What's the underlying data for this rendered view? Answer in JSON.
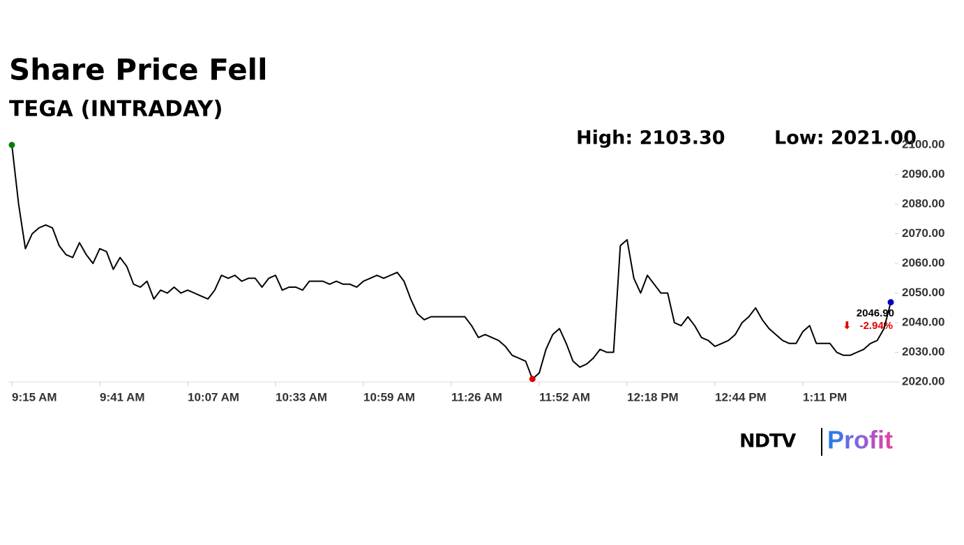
{
  "chart_data": {
    "type": "line",
    "title": "Share Price Fell",
    "subtitle": "TEGA (INTRADAY)",
    "high_text": "High: 2103.30",
    "low_text": "Low: 2021.00",
    "last_label": "2046.90",
    "change_label": "-2.94%",
    "categories": [
      "9:15 AM",
      null,
      null,
      null,
      null,
      null,
      null,
      null,
      null,
      null,
      null,
      null,
      null,
      "9:41 AM",
      null,
      null,
      null,
      null,
      null,
      null,
      null,
      null,
      null,
      null,
      null,
      null,
      "10:07 AM",
      null,
      null,
      null,
      null,
      null,
      null,
      null,
      null,
      null,
      null,
      null,
      null,
      "10:33 AM",
      null,
      null,
      null,
      null,
      null,
      null,
      null,
      null,
      null,
      null,
      null,
      null,
      "10:59 AM",
      null,
      null,
      null,
      null,
      null,
      null,
      null,
      null,
      null,
      null,
      null,
      null,
      "11:26 AM",
      null,
      null,
      null,
      null,
      null,
      null,
      null,
      null,
      null,
      null,
      null,
      null,
      "11:52 AM",
      null,
      null,
      null,
      null,
      null,
      null,
      null,
      null,
      null,
      null,
      null,
      null,
      "12:18 PM",
      null,
      null,
      null,
      null,
      null,
      null,
      null,
      null,
      null,
      null,
      null,
      null,
      "12:44 PM",
      null,
      null,
      null,
      null,
      null,
      null,
      null,
      null,
      null,
      null,
      null,
      null,
      "1:11 PM",
      null,
      null,
      null,
      null,
      null,
      null,
      null,
      null,
      null,
      null,
      null,
      null,
      null
    ],
    "series": [
      {
        "name": "TEGA",
        "color": "#000000",
        "values": [
          2100,
          2080,
          2065,
          2070,
          2072,
          2073,
          2072,
          2066,
          2063,
          2062,
          2067,
          2063,
          2060,
          2065,
          2064,
          2058,
          2062,
          2059,
          2053,
          2052,
          2054,
          2048,
          2051,
          2050,
          2052,
          2050,
          2051,
          2050,
          2049,
          2048,
          2051,
          2056,
          2055,
          2056,
          2054,
          2055,
          2055,
          2052,
          2055,
          2056,
          2051,
          2052,
          2052,
          2051,
          2054,
          2054,
          2054,
          2053,
          2054,
          2053,
          2053,
          2052,
          2054,
          2055,
          2056,
          2055,
          2056,
          2057,
          2054,
          2048,
          2043,
          2041,
          2042,
          2042,
          2042,
          2042,
          2042,
          2042,
          2039,
          2035,
          2036,
          2035,
          2034,
          2032,
          2029,
          2028,
          2027,
          2021,
          2023,
          2031,
          2036,
          2038,
          2033,
          2027,
          2025,
          2026,
          2028,
          2031,
          2030,
          2030,
          2066,
          2068,
          2055,
          2050,
          2056,
          2053,
          2050,
          2050,
          2040,
          2039,
          2042,
          2039,
          2035,
          2034,
          2032,
          2033,
          2034,
          2036,
          2040,
          2042,
          2045,
          2041,
          2038,
          2036,
          2034,
          2033,
          2033,
          2037,
          2039,
          2033,
          2033,
          2033,
          2030,
          2029,
          2029,
          2030,
          2031,
          2033,
          2034,
          2038,
          2046.9
        ]
      }
    ],
    "marker_colors": {
      "start": "#008000",
      "low": "#e00000",
      "end": "#0000c0"
    },
    "ylim": [
      2020,
      2100
    ],
    "yticks": [
      {
        "value": 2020,
        "label": "2020.00"
      },
      {
        "value": 2030,
        "label": "2030.00"
      },
      {
        "value": 2040,
        "label": "2040.00"
      },
      {
        "value": 2050,
        "label": "2050.00"
      },
      {
        "value": 2060,
        "label": "2060.00"
      },
      {
        "value": 2070,
        "label": "2070.00"
      },
      {
        "value": 2080,
        "label": "2080.00"
      },
      {
        "value": 2090,
        "label": "2090.00"
      },
      {
        "value": 2100,
        "label": "2100.00"
      }
    ],
    "grid": false
  },
  "logo": {
    "left": "NDTV",
    "right": "Profit"
  }
}
